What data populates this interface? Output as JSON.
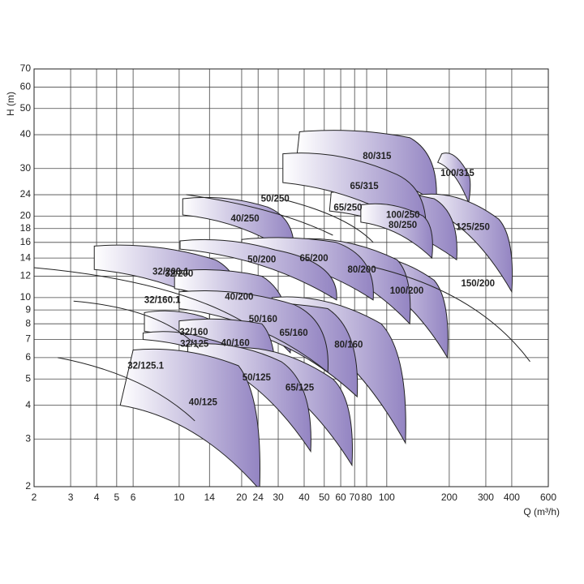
{
  "chart_data": {
    "type": "pump-map",
    "x_label": "Q (m³/h)",
    "y_label": "H (m)",
    "xscale": "log",
    "yscale": "log",
    "grid": true,
    "xlim": [
      2,
      600
    ],
    "ylim": [
      2,
      70
    ],
    "xticks": [
      2,
      3,
      4,
      5,
      6,
      10,
      14,
      20,
      24,
      30,
      40,
      50,
      60,
      70,
      80,
      100,
      200,
      300,
      400,
      600
    ],
    "yticks": [
      2,
      3,
      4,
      5,
      6,
      7,
      8,
      9,
      10,
      12,
      14,
      16,
      18,
      20,
      24,
      30,
      40,
      50,
      60,
      70
    ],
    "color": "#9384c2",
    "regions": [
      {
        "name": "100/315",
        "points": [
          [
            184,
            34
          ],
          [
            176,
            31.6
          ],
          [
            248,
            28.5
          ],
          [
            248,
            22.4
          ]
        ]
      },
      {
        "name": "80/315",
        "points": [
          [
            38,
            41
          ],
          [
            37,
            34
          ],
          [
            129,
            39
          ],
          [
            173,
            22.4
          ]
        ]
      },
      {
        "name": "125/250",
        "points": [
          [
            145,
            24
          ],
          [
            140,
            22
          ],
          [
            346,
            19.5
          ],
          [
            400,
            10.5
          ]
        ]
      },
      {
        "name": "100/250",
        "points": [
          [
            54,
            24.5
          ],
          [
            53,
            20.9
          ],
          [
            169,
            23.2
          ],
          [
            217,
            13.8
          ]
        ]
      },
      {
        "name": "65/315",
        "points": [
          [
            31.6,
            34
          ],
          [
            31.6,
            26.6
          ],
          [
            112,
            28.5
          ],
          [
            154,
            17
          ]
        ]
      },
      {
        "name": "80/250",
        "points": [
          [
            75,
            22
          ],
          [
            75,
            19
          ],
          [
            150,
            20
          ],
          [
            165,
            14
          ]
        ]
      },
      {
        "name": "40/250",
        "points": [
          [
            10.4,
            23.2
          ],
          [
            10.4,
            20.2
          ],
          [
            26.7,
            21.6
          ],
          [
            35.6,
            14.3
          ]
        ]
      },
      {
        "name": "100/200",
        "points": [
          [
            66,
            14.3
          ],
          [
            66,
            12.5
          ],
          [
            169,
            11.6
          ],
          [
            196,
            6
          ]
        ]
      },
      {
        "name": "80/200",
        "points": [
          [
            35,
            16.4
          ],
          [
            35,
            14
          ],
          [
            112,
            13.8
          ],
          [
            129,
            8
          ]
        ]
      },
      {
        "name": "65/200",
        "points": [
          [
            20,
            16.4
          ],
          [
            20,
            14.5
          ],
          [
            57,
            16
          ],
          [
            86,
            9.8
          ]
        ]
      },
      {
        "name": "50/200",
        "points": [
          [
            10.1,
            16.2
          ],
          [
            10.1,
            15.1
          ],
          [
            29,
            15
          ],
          [
            57.3,
            9.8
          ]
        ]
      },
      {
        "name": "32/200",
        "points": [
          [
            3.9,
            15.5
          ],
          [
            3.9,
            12.7
          ],
          [
            14.9,
            13.8
          ],
          [
            20,
            8.2
          ]
        ]
      },
      {
        "name": "40/200",
        "points": [
          [
            9.5,
            12.5
          ],
          [
            9.5,
            10.8
          ],
          [
            25,
            12
          ],
          [
            34.3,
            6.25
          ]
        ]
      },
      {
        "name": "80/160",
        "points": [
          [
            28,
            10
          ],
          [
            28,
            8.5
          ],
          [
            94,
            8
          ],
          [
            123,
            2.9
          ]
        ]
      },
      {
        "name": "65/160",
        "points": [
          [
            14,
            9.5
          ],
          [
            14,
            8
          ],
          [
            52,
            9.1
          ],
          [
            72,
            4.3
          ]
        ]
      },
      {
        "name": "50/160",
        "points": [
          [
            10,
            10.5
          ],
          [
            10,
            9.1
          ],
          [
            36,
            9.4
          ],
          [
            52,
            5.3
          ]
        ]
      },
      {
        "name": "32/160",
        "points": [
          [
            6.8,
            8.8
          ],
          [
            6.8,
            7.5
          ],
          [
            13,
            8.5
          ],
          [
            19.3,
            5.4
          ]
        ]
      },
      {
        "name": "40/160",
        "points": [
          [
            10,
            8.2
          ],
          [
            10,
            7.4
          ],
          [
            25,
            8
          ],
          [
            29,
            4.3
          ]
        ]
      },
      {
        "name": "32/125",
        "points": [
          [
            6.7,
            7.4
          ],
          [
            6.7,
            7
          ],
          [
            14,
            7
          ],
          [
            19,
            5.6
          ]
        ]
      },
      {
        "name": "65/125",
        "points": [
          [
            17,
            6.5
          ],
          [
            17,
            5.9
          ],
          [
            55,
            5
          ],
          [
            68,
            2.4
          ]
        ]
      },
      {
        "name": "50/125",
        "points": [
          [
            11,
            6.7
          ],
          [
            11,
            6.2
          ],
          [
            31,
            5.8
          ],
          [
            43,
            2.7
          ]
        ]
      },
      {
        "name": "40/125",
        "points": [
          [
            6,
            6.4
          ],
          [
            5.2,
            4
          ],
          [
            19.3,
            5.6
          ],
          [
            24.4,
            1.95
          ]
        ]
      }
    ],
    "curves": [
      {
        "name": "32/125.1",
        "points": [
          [
            2.6,
            6
          ],
          [
            6.9,
            5.2
          ],
          [
            11.9,
            3.5
          ]
        ]
      },
      {
        "name": "32/160.1",
        "points": [
          [
            3.1,
            9.7
          ],
          [
            8.3,
            9.1
          ],
          [
            12.4,
            6.5
          ]
        ]
      },
      {
        "name": "32/200.1",
        "points": [
          [
            2,
            12.9
          ],
          [
            9.1,
            11.6
          ],
          [
            20,
            8.2
          ]
        ]
      },
      {
        "name": "150/200",
        "points": [
          [
            85,
            13
          ],
          [
            275,
            10.5
          ],
          [
            490,
            5.8
          ]
        ]
      },
      {
        "name": "50/250",
        "points": [
          [
            10.8,
            24
          ],
          [
            29,
            21.6
          ],
          [
            55,
            17
          ]
        ]
      },
      {
        "name": "65/250",
        "points": [
          [
            32,
            23
          ],
          [
            65,
            20
          ],
          [
            86,
            16
          ]
        ]
      }
    ]
  }
}
